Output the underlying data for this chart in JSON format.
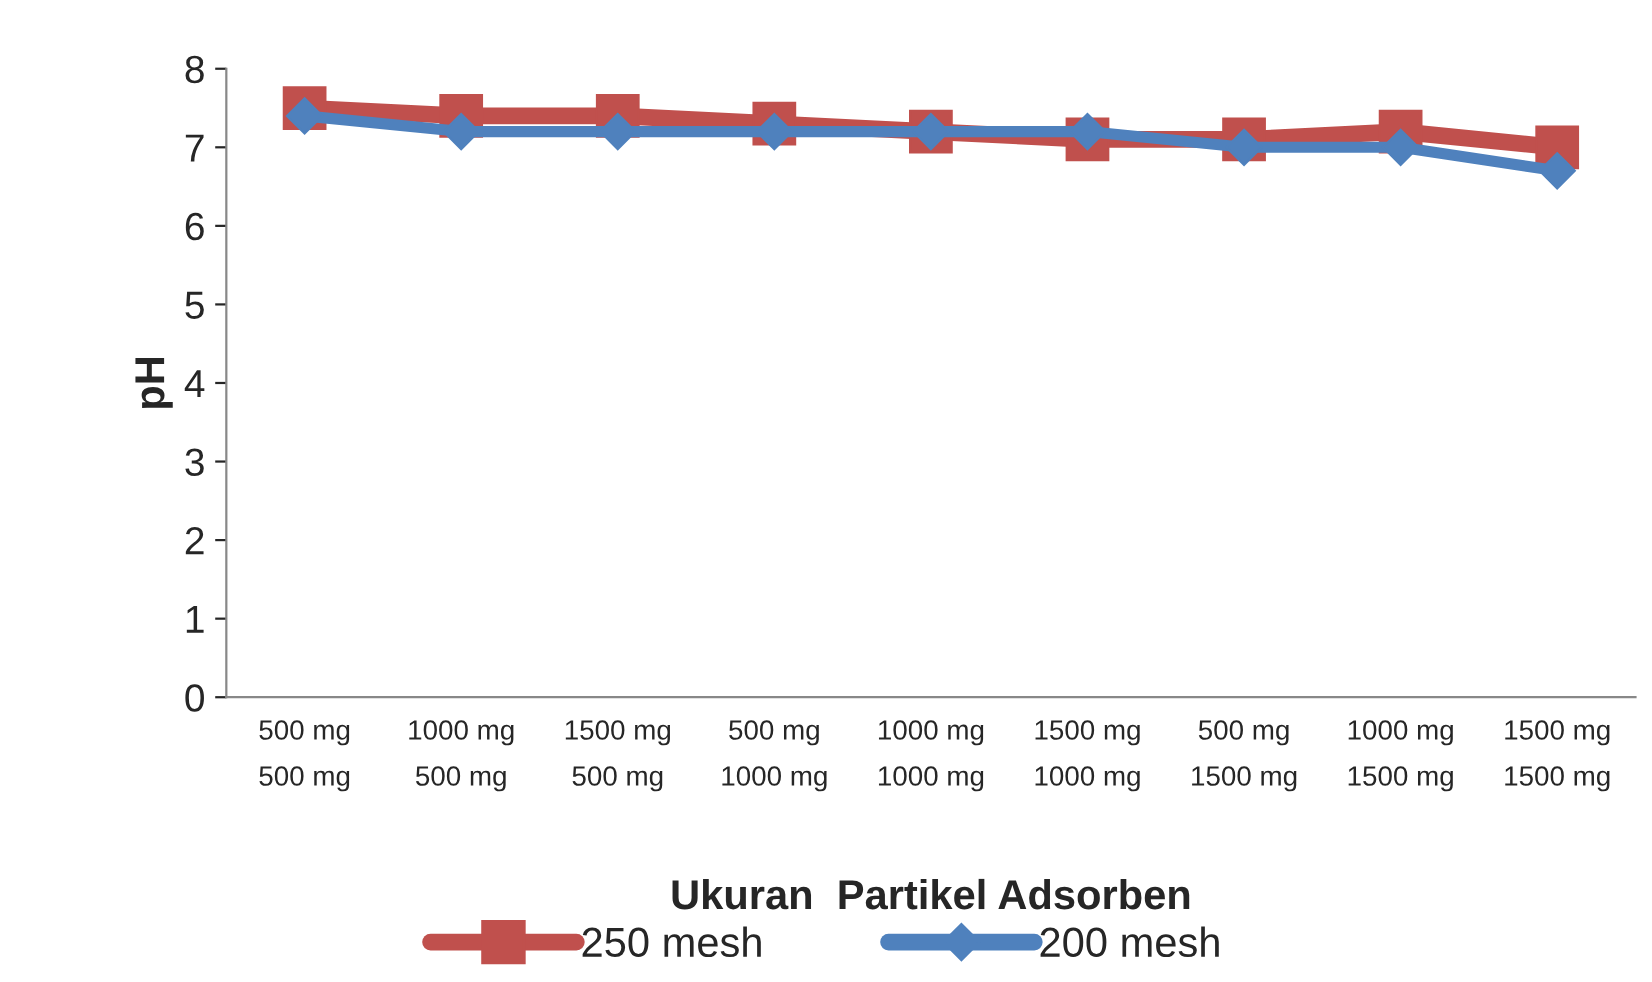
{
  "chart_data": {
    "type": "line",
    "xlabel": "Ukuran  Partikel Adsorben",
    "ylabel": "pH",
    "categories": [
      "500 mg\n500 mg",
      "1000 mg\n500 mg",
      "1500 mg\n500 mg",
      "500 mg\n1000 mg",
      "1000 mg\n1000 mg",
      "1500 mg\n1000 mg",
      "500 mg\n1500 mg",
      "1000 mg\n1500 mg",
      "1500 mg\n1500 mg"
    ],
    "series": [
      {
        "name": "250 mesh",
        "color": "#c0504d",
        "marker": "square",
        "values": [
          7.5,
          7.4,
          7.4,
          7.3,
          7.2,
          7.1,
          7.1,
          7.2,
          7.0
        ]
      },
      {
        "name": "200 mesh",
        "color": "#4f81bd",
        "marker": "diamond",
        "values": [
          7.4,
          7.2,
          7.2,
          7.2,
          7.2,
          7.2,
          7.0,
          7.0,
          6.7
        ]
      }
    ],
    "ylim": [
      0,
      8
    ],
    "yticks": [
      0,
      1,
      2,
      3,
      4,
      5,
      6,
      7,
      8
    ],
    "grid": false,
    "legend": "bottom"
  }
}
